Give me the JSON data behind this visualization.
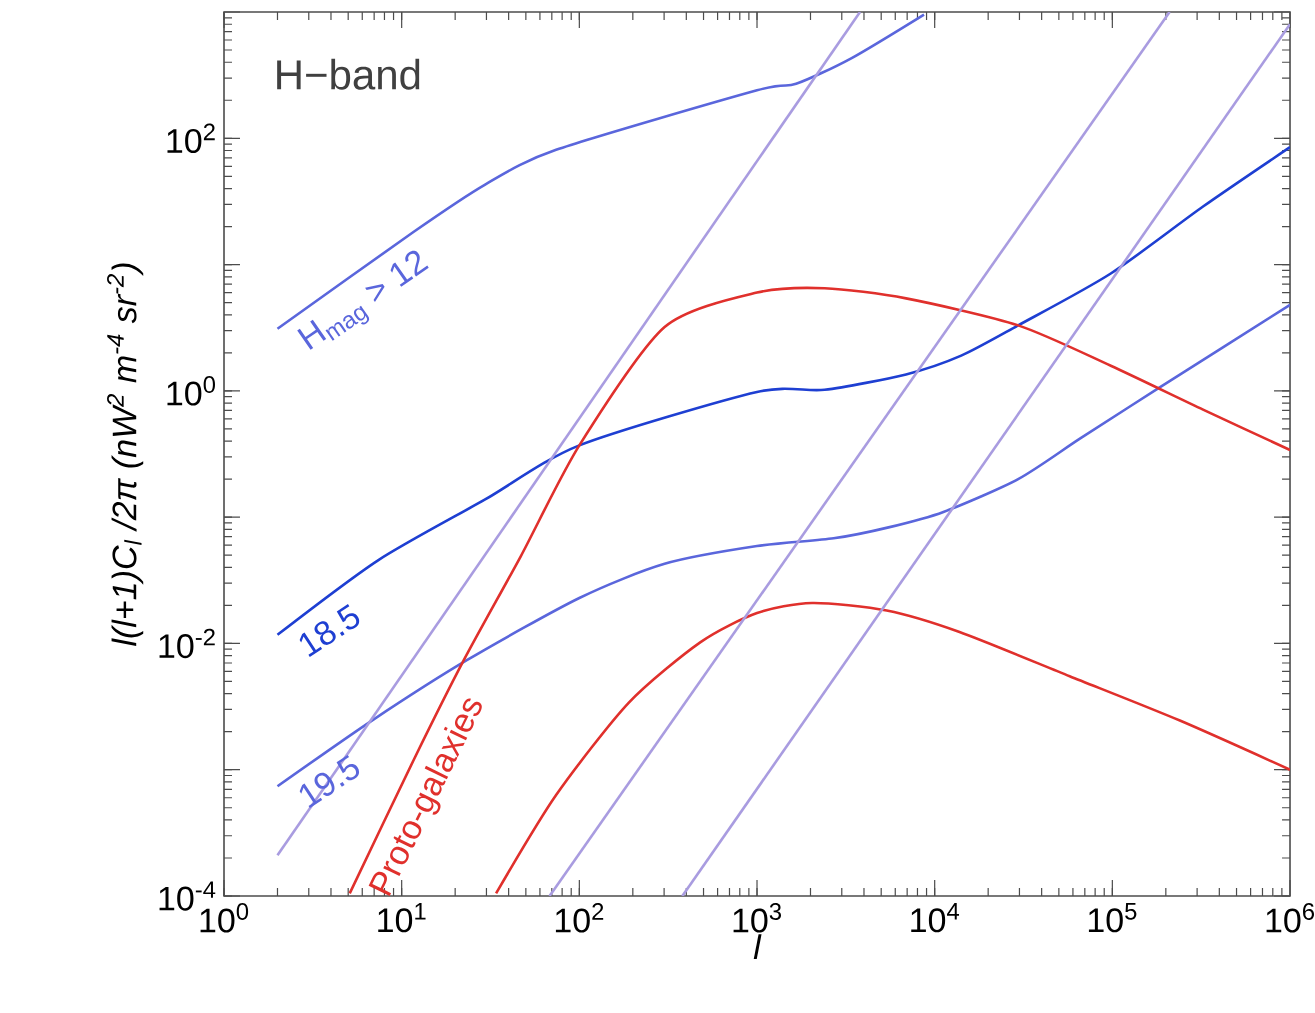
{
  "chart_data": {
    "type": "line",
    "log": "xy",
    "xlabel": "l",
    "ylabel": "l(l+1)C$_{l}$ /2π (nW$^{2}$ m$^{-4}$ sr$^{-2}$)",
    "annotations": [
      "H−band"
    ],
    "xlim": [
      1,
      1000000
    ],
    "ylim": [
      0.0001,
      1000
    ],
    "xticks": [
      {
        "value": 1,
        "label": "10$^{0}$"
      },
      {
        "value": 10,
        "label": "10$^{1}$"
      },
      {
        "value": 100,
        "label": "10$^{2}$"
      },
      {
        "value": 1000,
        "label": "10$^{3}$"
      },
      {
        "value": 10000,
        "label": "10$^{4}$"
      },
      {
        "value": 100000,
        "label": "10$^{5}$"
      },
      {
        "value": 1000000,
        "label": "10$^{6}$"
      }
    ],
    "yticks": [
      {
        "value": 0.0001,
        "label": "10$^{-4}$"
      },
      {
        "value": 0.001,
        "label": null
      },
      {
        "value": 0.01,
        "label": "10$^{-2}$"
      },
      {
        "value": 0.1,
        "label": null
      },
      {
        "value": 1,
        "label": "10$^{0}$"
      },
      {
        "value": 10,
        "label": null
      },
      {
        "value": 100,
        "label": "10$^{2}$"
      },
      {
        "value": 1000,
        "label": null
      }
    ],
    "series": [
      {
        "name": "H$_{mag}$ > 12",
        "color": "#5a66dc",
        "x": [
          2,
          11.7,
          29.5,
          74,
          1000,
          1660,
          3390,
          8710
        ],
        "values": [
          3.1,
          18.2,
          43,
          81,
          240,
          270,
          430,
          955
        ]
      },
      {
        "name": "18.5",
        "color": "#1e3fd2",
        "x": [
          2,
          7.4,
          29.5,
          100,
          1000,
          2400,
          6900,
          14100,
          29500,
          98000,
          324000,
          1000000
        ],
        "values": [
          0.0117,
          0.0457,
          0.138,
          0.37,
          0.98,
          1.02,
          1.35,
          1.9,
          3.3,
          8.5,
          28.8,
          85
        ]
      },
      {
        "name": "19.5",
        "color": "#5a66dc",
        "x": [
          2,
          6.8,
          23.4,
          100,
          302,
          1000,
          2700,
          5500,
          11200,
          29500,
          66000,
          182000,
          1000000
        ],
        "values": [
          0.00074,
          0.00245,
          0.0074,
          0.0229,
          0.0427,
          0.059,
          0.068,
          0.083,
          0.11,
          0.2,
          0.42,
          1.05,
          4.8
        ]
      },
      {
        "name": "Proto-galaxies",
        "color": "#e0302c",
        "x": [
          5.1,
          11.7,
          22.4,
          46.8,
          100,
          302,
          1000,
          2400,
          6900,
          29500,
          98000,
          324000,
          1000000
        ],
        "values": [
          0.000105,
          0.0012,
          0.0074,
          0.049,
          0.37,
          3.2,
          6.0,
          6.5,
          5.4,
          3.3,
          1.58,
          0.71,
          0.34
        ]
      },
      {
        "color": "#e0302c",
        "x": [
          34,
          74,
          190,
          479,
          1000,
          2040,
          5370,
          13800,
          57500,
          240000,
          1000000
        ],
        "values": [
          0.000105,
          0.00063,
          0.0034,
          0.0102,
          0.0174,
          0.0209,
          0.0182,
          0.0123,
          0.0055,
          0.00245,
          0.001
        ]
      },
      {
        "color": "#a99ce0",
        "x": [
          2,
          3800
        ],
        "values": [
          0.00021,
          1000
        ]
      },
      {
        "color": "#a99ce0",
        "x": [
          68,
          210000
        ],
        "values": [
          0.0001,
          1000
        ]
      },
      {
        "color": "#a99ce0",
        "x": [
          380,
          1000000
        ],
        "values": [
          0.0001,
          800
        ]
      }
    ]
  }
}
